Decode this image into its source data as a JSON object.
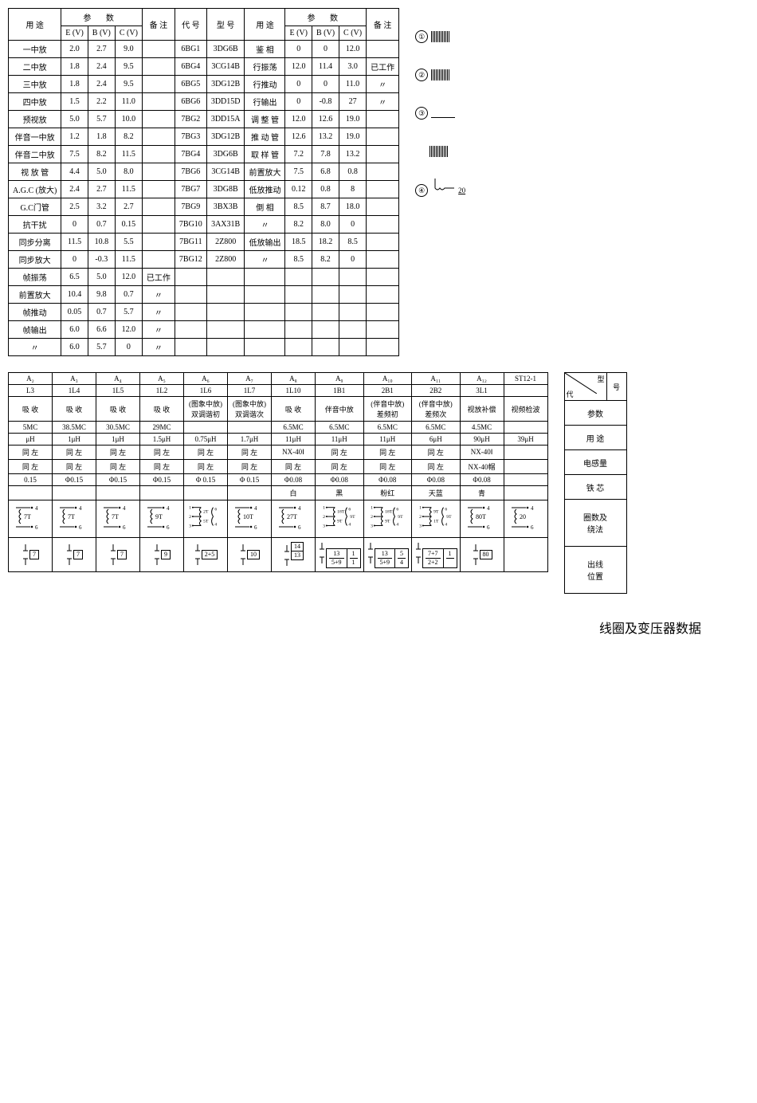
{
  "table1": {
    "headers": {
      "use": "用 途",
      "params": "参   数",
      "e": "E (V)",
      "b": "B (V)",
      "c": "C (V)",
      "note": "备 注",
      "code": "代 号",
      "model": "型 号"
    },
    "rowsL": [
      {
        "use": "一中放",
        "e": "2.0",
        "b": "2.7",
        "c": "9.0",
        "note": ""
      },
      {
        "use": "二中放",
        "e": "1.8",
        "b": "2.4",
        "c": "9.5",
        "note": ""
      },
      {
        "use": "三中放",
        "e": "1.8",
        "b": "2.4",
        "c": "9.5",
        "note": ""
      },
      {
        "use": "四中放",
        "e": "1.5",
        "b": "2.2",
        "c": "11.0",
        "note": ""
      },
      {
        "use": "预视放",
        "e": "5.0",
        "b": "5.7",
        "c": "10.0",
        "note": ""
      },
      {
        "use": "伴音一中放",
        "e": "1.2",
        "b": "1.8",
        "c": "8.2",
        "note": ""
      },
      {
        "use": "伴音二中放",
        "e": "7.5",
        "b": "8.2",
        "c": "11.5",
        "note": ""
      },
      {
        "use": "视 放 管",
        "e": "4.4",
        "b": "5.0",
        "c": "8.0",
        "note": ""
      },
      {
        "use": "A.G.C (放大)",
        "e": "2.4",
        "b": "2.7",
        "c": "11.5",
        "note": ""
      },
      {
        "use": "G.C门管",
        "e": "2.5",
        "b": "3.2",
        "c": "2.7",
        "note": ""
      },
      {
        "use": "抗干扰",
        "e": "0",
        "b": "0.7",
        "c": "0.15",
        "note": ""
      },
      {
        "use": "同步分离",
        "e": "11.5",
        "b": "10.8",
        "c": "5.5",
        "note": ""
      },
      {
        "use": "同步放大",
        "e": "0",
        "b": "-0.3",
        "c": "11.5",
        "note": ""
      },
      {
        "use": "帧振荡",
        "e": "6.5",
        "b": "5.0",
        "c": "12.0",
        "note": "已工作"
      },
      {
        "use": "前置放大",
        "e": "10.4",
        "b": "9.8",
        "c": "0.7",
        "note": "〃"
      },
      {
        "use": "帧推动",
        "e": "0.05",
        "b": "0.7",
        "c": "5.7",
        "note": "〃"
      },
      {
        "use": "帧输出",
        "e": "6.0",
        "b": "6.6",
        "c": "12.0",
        "note": "〃"
      },
      {
        "use": "〃",
        "e": "6.0",
        "b": "5.7",
        "c": "0",
        "note": "〃"
      }
    ],
    "rowsR": [
      {
        "code": "6BG1",
        "model": "3DG6B",
        "use": "鉴 相",
        "e": "0",
        "b": "0",
        "c": "12.0",
        "note": ""
      },
      {
        "code": "6BG4",
        "model": "3CG14B",
        "use": "行振荡",
        "e": "12.0",
        "b": "11.4",
        "c": "3.0",
        "note": "已工作"
      },
      {
        "code": "6BG5",
        "model": "3DG12B",
        "use": "行推动",
        "e": "0",
        "b": "0",
        "c": "11.0",
        "note": "〃"
      },
      {
        "code": "6BG6",
        "model": "3DD15D",
        "use": "行输出",
        "e": "0",
        "b": "-0.8",
        "c": "27",
        "note": "〃"
      },
      {
        "code": "7BG2",
        "model": "3DD15A",
        "use": "调 整 管",
        "e": "12.0",
        "b": "12.6",
        "c": "19.0",
        "note": ""
      },
      {
        "code": "7BG3",
        "model": "3DG12B",
        "use": "推 动 管",
        "e": "12.6",
        "b": "13.2",
        "c": "19.0",
        "note": ""
      },
      {
        "code": "7BG4",
        "model": "3DG6B",
        "use": "取 样 管",
        "e": "7.2",
        "b": "7.8",
        "c": "13.2",
        "note": ""
      },
      {
        "code": "7BG6",
        "model": "3CG14B",
        "use": "前置放大",
        "e": "7.5",
        "b": "6.8",
        "c": "0.8",
        "note": ""
      },
      {
        "code": "7BG7",
        "model": "3DG8B",
        "use": "低放推动",
        "e": "0.12",
        "b": "0.8",
        "c": "8",
        "note": ""
      },
      {
        "code": "7BG9",
        "model": "3BX3B",
        "use": "倒 相",
        "e": "8.5",
        "b": "8.7",
        "c": "18.0",
        "note": ""
      },
      {
        "code": "7BG10",
        "model": "3AX31B",
        "use": "〃",
        "e": "8.2",
        "b": "8.0",
        "c": "0",
        "note": ""
      },
      {
        "code": "7BG11",
        "model": "2Z800",
        "use": "低放输出",
        "e": "18.5",
        "b": "18.2",
        "c": "8.5",
        "note": ""
      },
      {
        "code": "7BG12",
        "model": "2Z800",
        "use": "〃",
        "e": "8.5",
        "b": "8.2",
        "c": "0",
        "note": ""
      }
    ]
  },
  "table2": {
    "headers": [
      "A₂",
      "A₃",
      "A₄",
      "A₅",
      "A₆",
      "A₇",
      "A₈",
      "A₉",
      "A₁₀",
      "A₁₁",
      "A₁₂",
      "ST12-1"
    ],
    "row_l": [
      "L3",
      "1L4",
      "1L5",
      "1L2",
      "1L6",
      "1L7",
      "1L10",
      "1B1",
      "2B1",
      "2B2",
      "3L1",
      ""
    ],
    "row_desc": [
      "吸 收",
      "吸 收",
      "吸 收",
      "吸 收",
      "(图象中放)\n双调谐初",
      "(图象中放)\n双调谐次",
      "吸 收",
      "伴音中放",
      "(伴音中放)\n差频初",
      "(伴音中放)\n差频次",
      "视放补偿",
      "视频检波"
    ],
    "row_mc": [
      "5MC",
      "38.5MC",
      "30.5MC",
      "29MC",
      "",
      "",
      "6.5MC",
      "6.5MC",
      "6.5MC",
      "6.5MC",
      "4.5MC",
      ""
    ],
    "row_uh": [
      "μH",
      "1μH",
      "1μH",
      "1.5μH",
      "0.75μH",
      "1.7μH",
      "11μH",
      "11μH",
      "11μH",
      "6μH",
      "90μH",
      "39μH"
    ],
    "row_c1": [
      "同 左",
      "同 左",
      "同 左",
      "同 左",
      "同 左",
      "同 左",
      "NX-40Ⅰ",
      "同 左",
      "同 左",
      "同 左",
      "NX-40Ⅰ",
      ""
    ],
    "row_c2": [
      "同 左",
      "同 左",
      "同 左",
      "同 左",
      "同 左",
      "同 左",
      "同 左",
      "同 左",
      "同 左",
      "同 左",
      "NX-40帽",
      ""
    ],
    "row_phi": [
      "0.15",
      "Φ0.15",
      "Φ0.15",
      "Φ0.15",
      "Φ 0.15",
      "Φ 0.15",
      "Φ0.08",
      "Φ0.08",
      "Φ0.08",
      "Φ0.08",
      "Φ0.08",
      ""
    ],
    "row_color": [
      "",
      "",
      "",
      "",
      "",
      "",
      "白",
      "黑",
      "粉红",
      "天蓝",
      "青",
      ""
    ],
    "row_turns": [
      "7T",
      "7T",
      "7T",
      "9T",
      "2T/5T",
      "10T",
      "27T",
      "18T/9T/9T",
      "18T/9T/9T",
      "9T/1T/9T",
      "80T",
      "20"
    ],
    "row_tap": [
      [
        "7"
      ],
      [
        "7"
      ],
      [
        "7"
      ],
      [
        "9"
      ],
      [
        "2+5"
      ],
      [
        "10"
      ],
      [
        "14",
        "13"
      ],
      [
        "13",
        "1",
        "5+9",
        "1"
      ],
      [
        "13",
        "5",
        "5+9",
        "4"
      ],
      [
        "7+7",
        "1",
        "2+2"
      ],
      [
        "80"
      ],
      []
    ]
  },
  "side_labels": {
    "n1": "①",
    "n2": "②",
    "n3": "③",
    "n4": "④",
    "v": "20"
  },
  "small_table": {
    "h1": "代",
    "h2": "型",
    "h3": "号",
    "h4": "号",
    "rows": [
      "参数",
      "用 途",
      "电感量",
      "铁 芯",
      "圈数及\n绕法",
      "出线\n位置"
    ]
  },
  "footer": "线圈及变压器数据"
}
